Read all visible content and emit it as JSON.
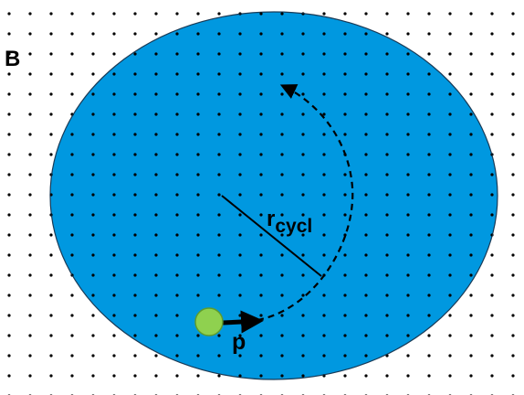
{
  "labels": {
    "field": "B",
    "radius_main": "r",
    "radius_sub": "cycl",
    "momentum": "p"
  },
  "colors": {
    "region_fill": "#0098E0",
    "region_stroke": "#1a3b57",
    "particle_fill": "#8FD14F",
    "particle_stroke": "#5E9C2E",
    "dots": "#000000",
    "lines": "#000000"
  }
}
